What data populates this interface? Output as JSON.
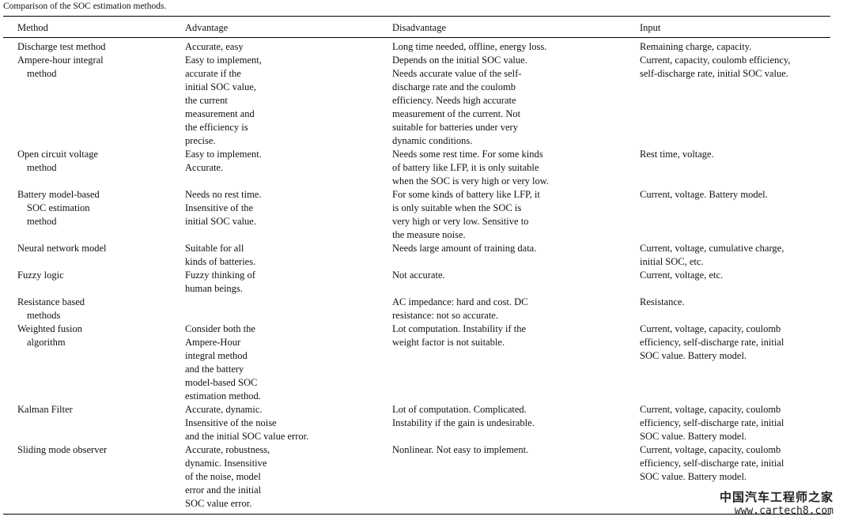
{
  "title": "Comparison of the SOC estimation methods.",
  "table": {
    "header": [
      "Method",
      "Advantage",
      "Disadvantage",
      "Input"
    ],
    "rows": [
      [
        "Discharge test method",
        "Accurate, easy",
        "Long time needed, offline, energy loss.",
        "Remaining charge, capacity."
      ],
      [
        "Ampere-hour integral\nmethod",
        "Easy to implement,\naccurate if the\ninitial SOC value,\nthe current\nmeasurement and\nthe efficiency is\nprecise.",
        "Depends on the initial SOC value.\nNeeds accurate value of the self-\ndischarge rate and the coulomb\nefficiency. Needs high accurate\nmeasurement of the current. Not\nsuitable for batteries under very\ndynamic conditions.",
        "Current, capacity, coulomb efficiency,\nself-discharge rate, initial SOC value."
      ],
      [
        "Open circuit voltage\nmethod",
        "Easy to implement.\nAccurate.",
        "Needs some rest time. For some kinds\nof battery like LFP, it is only suitable\nwhen the SOC is very high or very low.",
        "Rest time, voltage."
      ],
      [
        "Battery model-based\nSOC estimation\nmethod",
        "Needs no rest time.\nInsensitive of the\ninitial SOC value.",
        "For some kinds of battery like LFP, it\nis only suitable when the SOC is\nvery high or very low. Sensitive to\nthe measure noise.",
        "Current, voltage. Battery model."
      ],
      [
        "Neural network model",
        "Suitable for all\nkinds of batteries.",
        "Needs large amount of training data.",
        "Current, voltage, cumulative charge,\ninitial SOC, etc."
      ],
      [
        "Fuzzy logic",
        "Fuzzy thinking of\nhuman beings.",
        "Not accurate.",
        "Current, voltage, etc."
      ],
      [
        "Resistance based\nmethods",
        null,
        "AC impedance: hard and cost. DC\nresistance: not so accurate.",
        "Resistance."
      ],
      [
        "Weighted fusion\nalgorithm",
        "Consider both the\nAmpere-Hour\nintegral method\nand the battery\nmodel-based SOC\nestimation method.",
        "Lot computation. Instability if the\nweight factor is not suitable.",
        "Current, voltage, capacity, coulomb\nefficiency, self-discharge rate, initial\nSOC value. Battery model."
      ],
      [
        "Kalman Filter",
        "Accurate, dynamic.\nInsensitive of the noise\nand the initial SOC value error.",
        "Lot of computation. Complicated.\nInstability if the gain is undesirable.",
        "Current, voltage, capacity, coulomb\nefficiency, self-discharge rate, initial\nSOC value. Battery model."
      ],
      [
        "Sliding mode observer",
        "Accurate, robustness,\ndynamic. Insensitive\nof the noise, model\nerror and the initial\nSOC value error.",
        "Nonlinear. Not easy to implement.",
        "Current, voltage, capacity, coulomb\nefficiency, self-discharge rate, initial\nSOC value. Battery model."
      ]
    ]
  },
  "watermark": {
    "name": "中国汽车工程师之家",
    "url": "www.cartech8.com"
  }
}
